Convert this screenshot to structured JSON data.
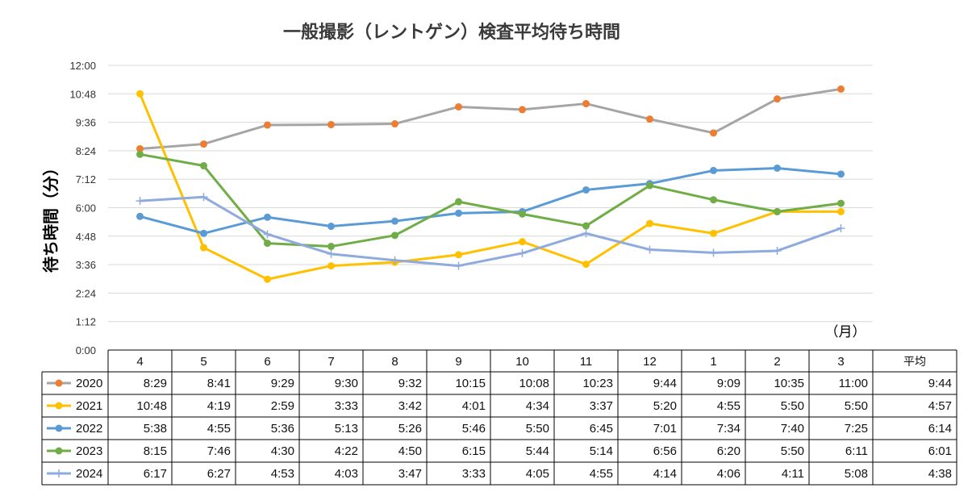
{
  "chart_data": {
    "type": "line",
    "title": "一般撮影（レントゲン）検査平均待ち時間",
    "ylabel": "待ち時間（分）",
    "xunit": "（月）",
    "avg_label": "平均",
    "categories": [
      "4",
      "5",
      "6",
      "7",
      "8",
      "9",
      "10",
      "11",
      "12",
      "1",
      "2",
      "3"
    ],
    "yticks": [
      "0:00",
      "1:12",
      "2:24",
      "3:36",
      "4:48",
      "6:00",
      "7:12",
      "8:24",
      "9:36",
      "10:48",
      "12:00"
    ],
    "ylim": [
      0,
      720
    ],
    "grid": true,
    "legend": "data-table",
    "series": [
      {
        "name": "2020",
        "color": "#ED7D31",
        "line": "#A5A5A5",
        "marker": "circle",
        "values": [
          "8:29",
          "8:41",
          "9:29",
          "9:30",
          "9:32",
          "10:15",
          "10:08",
          "10:23",
          "9:44",
          "9:09",
          "10:35",
          "11:00"
        ],
        "avg": "9:44"
      },
      {
        "name": "2021",
        "color": "#FFC000",
        "line": "#FFC000",
        "marker": "circle",
        "values": [
          "10:48",
          "4:19",
          "2:59",
          "3:33",
          "3:42",
          "4:01",
          "4:34",
          "3:37",
          "5:20",
          "4:55",
          "5:50",
          "5:50"
        ],
        "avg": "4:57"
      },
      {
        "name": "2022",
        "color": "#5B9BD5",
        "line": "#5B9BD5",
        "marker": "circle",
        "values": [
          "5:38",
          "4:55",
          "5:36",
          "5:13",
          "5:26",
          "5:46",
          "5:50",
          "6:45",
          "7:01",
          "7:34",
          "7:40",
          "7:25"
        ],
        "avg": "6:14"
      },
      {
        "name": "2023",
        "color": "#70AD47",
        "line": "#70AD47",
        "marker": "circle",
        "values": [
          "8:15",
          "7:46",
          "4:30",
          "4:22",
          "4:50",
          "6:15",
          "5:44",
          "5:14",
          "6:56",
          "6:20",
          "5:50",
          "6:11"
        ],
        "avg": "6:01"
      },
      {
        "name": "2024",
        "color": "#8FAADC",
        "line": "#8FAADC",
        "marker": "plus",
        "values": [
          "6:17",
          "6:27",
          "4:53",
          "4:03",
          "3:47",
          "3:33",
          "4:05",
          "4:55",
          "4:14",
          "4:06",
          "4:11",
          "5:08"
        ],
        "avg": "4:38"
      }
    ]
  }
}
